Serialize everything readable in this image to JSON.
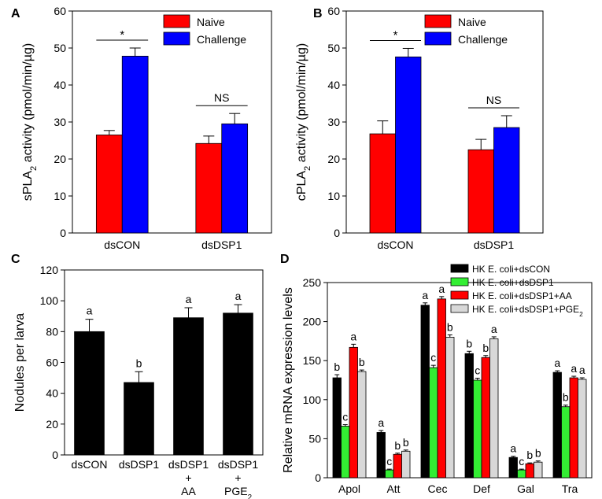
{
  "colors": {
    "red": "#ff0000",
    "blue": "#0000ff",
    "black": "#000000",
    "green": "#33ee33",
    "light": "#d8d8d8"
  },
  "chart_data": [
    {
      "panel": "A",
      "type": "bar",
      "ylabel": "sPLA2 activity (pmol/min/µg)",
      "ylim": [
        0,
        60
      ],
      "yticks": [
        0,
        10,
        20,
        30,
        40,
        50,
        60
      ],
      "categories": [
        "dsCON",
        "dsDSP1"
      ],
      "series": [
        {
          "name": "Naive",
          "color": "red",
          "values": [
            26.5,
            24.2
          ],
          "errors": [
            1.2,
            2.0
          ]
        },
        {
          "name": "Challenge",
          "color": "blue",
          "values": [
            47.8,
            29.5
          ],
          "errors": [
            2.2,
            2.8
          ]
        }
      ],
      "significance": [
        "*",
        "NS"
      ]
    },
    {
      "panel": "B",
      "type": "bar",
      "ylabel": "cPLA2 activity (pmol/min/µg)",
      "ylim": [
        0,
        60
      ],
      "yticks": [
        0,
        10,
        20,
        30,
        40,
        50,
        60
      ],
      "categories": [
        "dsCON",
        "dsDSP1"
      ],
      "series": [
        {
          "name": "Naive",
          "color": "red",
          "values": [
            26.8,
            22.5
          ],
          "errors": [
            3.5,
            2.8
          ]
        },
        {
          "name": "Challenge",
          "color": "blue",
          "values": [
            47.6,
            28.5
          ],
          "errors": [
            2.3,
            3.2
          ]
        }
      ],
      "significance": [
        "*",
        "NS"
      ]
    },
    {
      "panel": "C",
      "type": "bar",
      "ylabel": "Nodules per larva",
      "ylim": [
        0,
        120
      ],
      "yticks": [
        0,
        20,
        40,
        60,
        80,
        100,
        120
      ],
      "categories": [
        [
          "dsCON"
        ],
        [
          "dsDSP1"
        ],
        [
          "dsDSP1",
          "+",
          "AA"
        ],
        [
          "dsDSP1",
          "+",
          "PGE2"
        ]
      ],
      "values": [
        80,
        47,
        89,
        92
      ],
      "errors": [
        8,
        7,
        6.5,
        5.5
      ],
      "letters": [
        "a",
        "b",
        "a",
        "a"
      ]
    },
    {
      "panel": "D",
      "type": "bar",
      "ylabel": "Relative mRNA expression levels",
      "ylim": [
        0,
        250
      ],
      "yticks": [
        0,
        50,
        100,
        150,
        200,
        250
      ],
      "categories": [
        "Apol",
        "Att",
        "Cec",
        "Def",
        "Gal",
        "Tra"
      ],
      "series": [
        {
          "name": "HK E. coli+dsCON",
          "color": "black",
          "values": [
            128,
            58,
            221,
            159,
            26,
            135
          ],
          "errors": [
            4,
            2.5,
            3,
            3,
            1.5,
            2
          ],
          "letters": [
            "b",
            "a",
            "a",
            "b",
            "a",
            "a"
          ]
        },
        {
          "name": "HK E. coli+dsDSP1",
          "color": "green",
          "values": [
            66,
            10,
            141,
            125,
            10,
            91
          ],
          "errors": [
            2,
            1,
            3,
            2.5,
            1,
            2
          ],
          "letters": [
            "c",
            "c",
            "c",
            "c",
            "c",
            "b"
          ]
        },
        {
          "name": "HK E. coli+dsDSP1+AA",
          "color": "red",
          "values": [
            167,
            30,
            229,
            154,
            18,
            128
          ],
          "errors": [
            4,
            1.5,
            3,
            2.5,
            1,
            2
          ],
          "letters": [
            "a",
            "b",
            "a",
            "b",
            "b",
            "a"
          ]
        },
        {
          "name": "HK E. coli+dsDSP1+PGE2",
          "color": "light",
          "values": [
            136,
            34,
            180,
            178,
            20,
            126
          ],
          "errors": [
            2,
            1.5,
            3,
            2.5,
            1.5,
            2
          ],
          "letters": [
            "b",
            "b",
            "b",
            "a",
            "b",
            "a"
          ]
        }
      ]
    }
  ]
}
